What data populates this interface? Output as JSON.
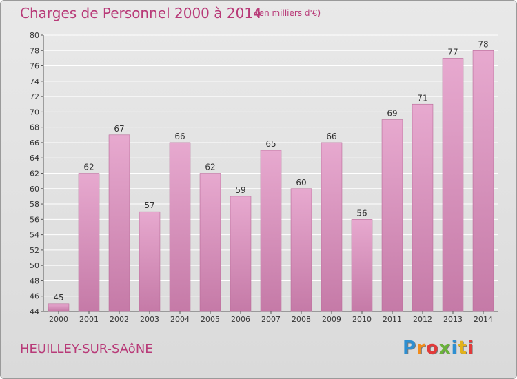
{
  "header": {
    "title": "Charges de Personnel 2000 à 2014",
    "subtitle": "(en milliers d'€)"
  },
  "footer": {
    "commune": "HEUILLEY-SUR-SAôNE",
    "logo_letters": [
      "P",
      "r",
      "o",
      "x",
      "i",
      "t",
      "i"
    ],
    "logo_colors": [
      "#2e8fd1",
      "#f28c1b",
      "#e23a3a",
      "#6ab23a",
      "#2e8fd1",
      "#e2b21b",
      "#e23a3a"
    ]
  },
  "colors": {
    "bar_light": "#e7a9cf",
    "bar_dark": "#c57aa7",
    "grid": "#ffffff",
    "axis": "#555555"
  },
  "chart_data": {
    "type": "bar",
    "title": "Charges de Personnel 2000 à 2014",
    "subtitle": "(en milliers d'€)",
    "categories": [
      "2000",
      "2001",
      "2002",
      "2003",
      "2004",
      "2005",
      "2006",
      "2007",
      "2008",
      "2009",
      "2010",
      "2011",
      "2012",
      "2013",
      "2014"
    ],
    "values": [
      45,
      62,
      67,
      57,
      66,
      62,
      59,
      65,
      60,
      66,
      56,
      69,
      71,
      77,
      78
    ],
    "ylim": [
      44,
      80
    ],
    "yticks": [
      44,
      46,
      48,
      50,
      52,
      54,
      56,
      58,
      60,
      62,
      64,
      66,
      68,
      70,
      72,
      74,
      76,
      78,
      80
    ],
    "grid": true,
    "legend": "none"
  }
}
